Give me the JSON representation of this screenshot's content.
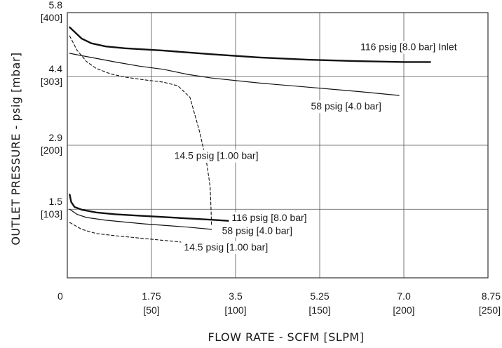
{
  "chart_data": {
    "type": "line",
    "xlabel": "FLOW RATE - SCFM [SLPM]",
    "ylabel": "OUTLET PRESSURE - psig [mbar]",
    "xlim": [
      0,
      8.75
    ],
    "ylim": [
      0,
      5.8
    ],
    "grid": true,
    "x_ticks": [
      {
        "value": 0,
        "label": "0",
        "sub": ""
      },
      {
        "value": 1.75,
        "label": "1.75",
        "sub": "[50]"
      },
      {
        "value": 3.5,
        "label": "3.5",
        "sub": "[100]"
      },
      {
        "value": 5.25,
        "label": "5.25",
        "sub": "[150]"
      },
      {
        "value": 7.0,
        "label": "7.0",
        "sub": "[200]"
      },
      {
        "value": 8.75,
        "label": "8.75",
        "sub": "[250]"
      }
    ],
    "y_ticks": [
      {
        "value": 1.5,
        "label": "1.5",
        "sub": "[103]"
      },
      {
        "value": 2.9,
        "label": "2.9",
        "sub": "[200]"
      },
      {
        "value": 4.4,
        "label": "4.4",
        "sub": "[303]"
      },
      {
        "value": 5.8,
        "label": "5.8",
        "sub": "[400]"
      }
    ],
    "series": [
      {
        "name": "116 psig [8.0 bar] Inlet",
        "style": "thick",
        "x": [
          0.05,
          0.15,
          0.3,
          0.5,
          0.8,
          1.2,
          2.0,
          3.0,
          4.0,
          5.0,
          6.0,
          7.0,
          7.55
        ],
        "y": [
          5.48,
          5.38,
          5.23,
          5.13,
          5.06,
          5.02,
          4.97,
          4.89,
          4.82,
          4.77,
          4.74,
          4.72,
          4.72
        ]
      },
      {
        "name": "58 psig [4.0 bar]",
        "style": "thin",
        "x": [
          0.05,
          0.5,
          1.0,
          1.5,
          2.0,
          2.5,
          3.0,
          4.0,
          5.0,
          6.0,
          6.9
        ],
        "y": [
          4.91,
          4.82,
          4.72,
          4.63,
          4.56,
          4.45,
          4.37,
          4.26,
          4.17,
          4.08,
          3.99
        ]
      },
      {
        "name": "14.5 psig [1.00 bar]",
        "style": "dashed",
        "x": [
          0.05,
          0.2,
          0.4,
          0.6,
          0.9,
          1.2,
          1.6,
          2.0,
          2.3,
          2.55,
          2.75,
          2.9,
          2.97,
          2.99,
          3.0
        ],
        "y": [
          5.29,
          4.98,
          4.73,
          4.58,
          4.46,
          4.39,
          4.33,
          4.28,
          4.2,
          3.95,
          3.2,
          2.5,
          2.0,
          1.5,
          1.13
        ]
      },
      {
        "name": "116 psig [8.0 bar]",
        "style": "thick",
        "x": [
          0.05,
          0.08,
          0.15,
          0.3,
          0.6,
          1.0,
          1.5,
          2.0,
          2.5,
          3.0,
          3.45
        ],
        "y": [
          1.82,
          1.66,
          1.55,
          1.49,
          1.43,
          1.39,
          1.36,
          1.33,
          1.3,
          1.27,
          1.24
        ]
      },
      {
        "name": "58 psig [4.0 bar]",
        "style": "thin",
        "x": [
          0.05,
          0.2,
          0.4,
          0.8,
          1.2,
          1.6,
          2.0,
          2.5,
          3.0
        ],
        "y": [
          1.5,
          1.39,
          1.32,
          1.26,
          1.22,
          1.18,
          1.15,
          1.11,
          1.06
        ]
      },
      {
        "name": "14.5 psig [1.00 bar]",
        "style": "dashed",
        "x": [
          0.05,
          0.3,
          0.6,
          1.0,
          1.5,
          2.0,
          2.5
        ],
        "y": [
          1.21,
          1.06,
          0.97,
          0.92,
          0.87,
          0.82,
          0.77
        ]
      }
    ],
    "annotations": [
      {
        "text": "116 psig [8.0 bar] Inlet",
        "x": 7.1,
        "y": 4.98
      },
      {
        "text": "58 psig [4.0 bar]",
        "x": 5.8,
        "y": 3.68
      },
      {
        "text": "14.5 psig [1.00 bar]",
        "x": 3.1,
        "y": 2.6
      },
      {
        "text": "116 psig [8.0 bar]",
        "x": 4.2,
        "y": 1.24
      },
      {
        "text": "58 psig [4.0 bar]",
        "x": 3.95,
        "y": 0.96
      },
      {
        "text": "14.5 psig [1.00 bar]",
        "x": 3.3,
        "y": 0.6
      }
    ]
  }
}
